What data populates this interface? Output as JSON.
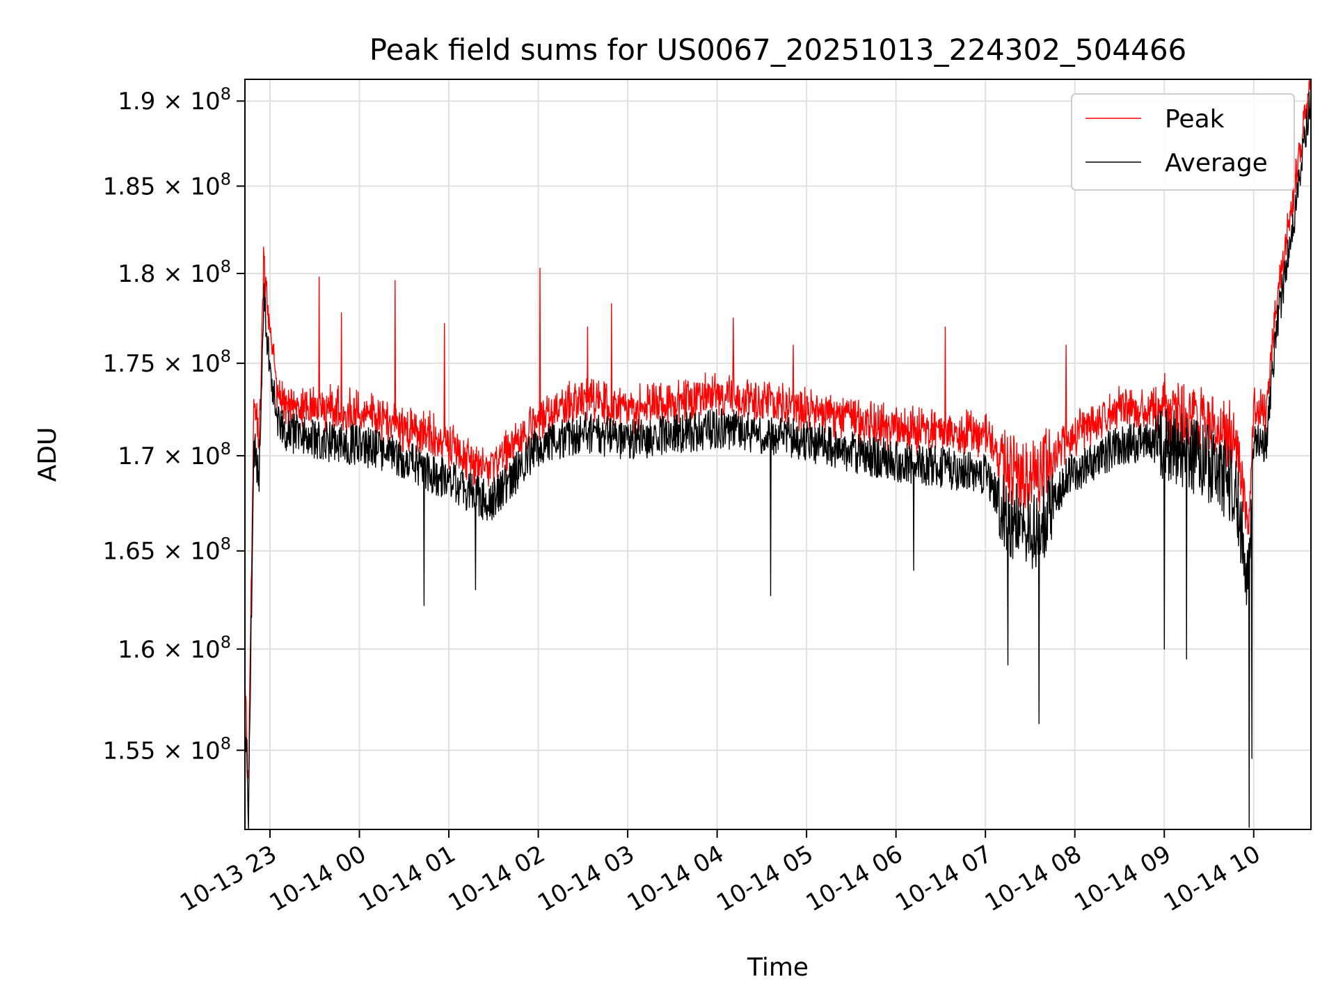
{
  "chart_data": {
    "type": "line",
    "title": "Peak field sums for US0067_20251013_224302_504466",
    "xlabel": "Time",
    "ylabel": "ADU",
    "y_scale": "log",
    "ylim": [
      151200000,
      191300000
    ],
    "xlim_hours": [
      22.72,
      10.64
    ],
    "x_ticks": [
      {
        "hours": 23,
        "label": "10-13 23"
      },
      {
        "hours": 24,
        "label": "10-14 00"
      },
      {
        "hours": 25,
        "label": "10-14 01"
      },
      {
        "hours": 26,
        "label": "10-14 02"
      },
      {
        "hours": 27,
        "label": "10-14 03"
      },
      {
        "hours": 28,
        "label": "10-14 04"
      },
      {
        "hours": 29,
        "label": "10-14 05"
      },
      {
        "hours": 30,
        "label": "10-14 06"
      },
      {
        "hours": 31,
        "label": "10-14 07"
      },
      {
        "hours": 32,
        "label": "10-14 08"
      },
      {
        "hours": 33,
        "label": "10-14 09"
      },
      {
        "hours": 34,
        "label": "10-14 10"
      }
    ],
    "y_ticks": [
      {
        "value": 155000000,
        "mantissa": "1.55"
      },
      {
        "value": 160000000,
        "mantissa": "1.6"
      },
      {
        "value": 165000000,
        "mantissa": "1.65"
      },
      {
        "value": 170000000,
        "mantissa": "1.7"
      },
      {
        "value": 175000000,
        "mantissa": "1.75"
      },
      {
        "value": 180000000,
        "mantissa": "1.8"
      },
      {
        "value": 185000000,
        "mantissa": "1.85"
      },
      {
        "value": 190000000,
        "mantissa": "1.9"
      }
    ],
    "y_tick_suffix": "× 10",
    "y_tick_exponent": "8",
    "grid": true,
    "legend_position": "top-right",
    "series": [
      {
        "name": "Peak",
        "color": "#ff0000",
        "profile": [
          [
            22.72,
            158000000
          ],
          [
            22.76,
            152500000
          ],
          [
            22.82,
            172500000
          ],
          [
            22.88,
            170500000
          ],
          [
            22.93,
            180000000
          ],
          [
            23.0,
            176000000
          ],
          [
            23.1,
            172500000
          ],
          [
            23.5,
            172000000
          ],
          [
            24.0,
            172000000
          ],
          [
            24.5,
            171000000
          ],
          [
            24.85,
            170500000
          ],
          [
            25.2,
            169500000
          ],
          [
            25.45,
            168800000
          ],
          [
            25.7,
            170000000
          ],
          [
            26.0,
            171500000
          ],
          [
            26.5,
            172500000
          ],
          [
            27.0,
            172000000
          ],
          [
            28.0,
            172800000
          ],
          [
            28.5,
            172500000
          ],
          [
            29.0,
            172000000
          ],
          [
            29.5,
            171500000
          ],
          [
            30.0,
            171000000
          ],
          [
            30.5,
            170800000
          ],
          [
            31.0,
            170500000
          ],
          [
            31.3,
            168500000
          ],
          [
            31.6,
            168500000
          ],
          [
            31.9,
            170500000
          ],
          [
            32.5,
            172000000
          ],
          [
            33.0,
            172000000
          ],
          [
            33.5,
            171000000
          ],
          [
            33.8,
            170000000
          ],
          [
            33.94,
            165000000
          ],
          [
            34.0,
            172000000
          ],
          [
            34.15,
            172000000
          ],
          [
            34.25,
            178000000
          ],
          [
            34.45,
            184000000
          ],
          [
            34.6,
            189500000
          ],
          [
            34.64,
            191000000
          ]
        ],
        "spikes": [
          [
            22.93,
            181500000
          ],
          [
            23.55,
            179800000
          ],
          [
            23.8,
            177800000
          ],
          [
            24.4,
            179600000
          ],
          [
            24.95,
            177200000
          ],
          [
            26.02,
            180300000
          ],
          [
            26.55,
            177000000
          ],
          [
            26.82,
            178300000
          ],
          [
            28.18,
            177500000
          ],
          [
            28.85,
            176000000
          ],
          [
            30.55,
            177000000
          ],
          [
            31.9,
            176000000
          ],
          [
            34.2,
            176000000
          ]
        ]
      },
      {
        "name": "Average",
        "color": "#000000",
        "profile": [
          [
            22.72,
            157000000
          ],
          [
            22.76,
            151500000
          ],
          [
            22.82,
            170500000
          ],
          [
            22.88,
            169000000
          ],
          [
            22.93,
            178800000
          ],
          [
            23.0,
            174500000
          ],
          [
            23.1,
            171500000
          ],
          [
            23.5,
            170800000
          ],
          [
            24.0,
            170600000
          ],
          [
            24.5,
            169800000
          ],
          [
            24.85,
            169000000
          ],
          [
            25.2,
            168200000
          ],
          [
            25.45,
            167500000
          ],
          [
            25.7,
            168800000
          ],
          [
            26.0,
            170500000
          ],
          [
            26.5,
            171300000
          ],
          [
            27.0,
            170800000
          ],
          [
            28.0,
            171500000
          ],
          [
            28.5,
            171200000
          ],
          [
            29.0,
            170800000
          ],
          [
            29.5,
            170200000
          ],
          [
            30.0,
            169700000
          ],
          [
            30.5,
            169400000
          ],
          [
            31.0,
            169000000
          ],
          [
            31.3,
            166500000
          ],
          [
            31.6,
            166000000
          ],
          [
            31.9,
            168800000
          ],
          [
            32.5,
            170600000
          ],
          [
            33.0,
            170700000
          ],
          [
            33.5,
            169600000
          ],
          [
            33.8,
            168200000
          ],
          [
            33.94,
            163000000
          ],
          [
            34.0,
            170500000
          ],
          [
            34.15,
            170800000
          ],
          [
            34.25,
            176800000
          ],
          [
            34.45,
            183000000
          ],
          [
            34.6,
            188800000
          ],
          [
            34.64,
            190300000
          ]
        ],
        "dips": [
          [
            24.72,
            162200000
          ],
          [
            25.3,
            163000000
          ],
          [
            28.6,
            162700000
          ],
          [
            30.2,
            164000000
          ],
          [
            31.25,
            159200000
          ],
          [
            31.6,
            156300000
          ],
          [
            33.0,
            160000000
          ],
          [
            33.25,
            159500000
          ],
          [
            33.95,
            151300000
          ],
          [
            33.98,
            154600000
          ]
        ]
      }
    ]
  }
}
